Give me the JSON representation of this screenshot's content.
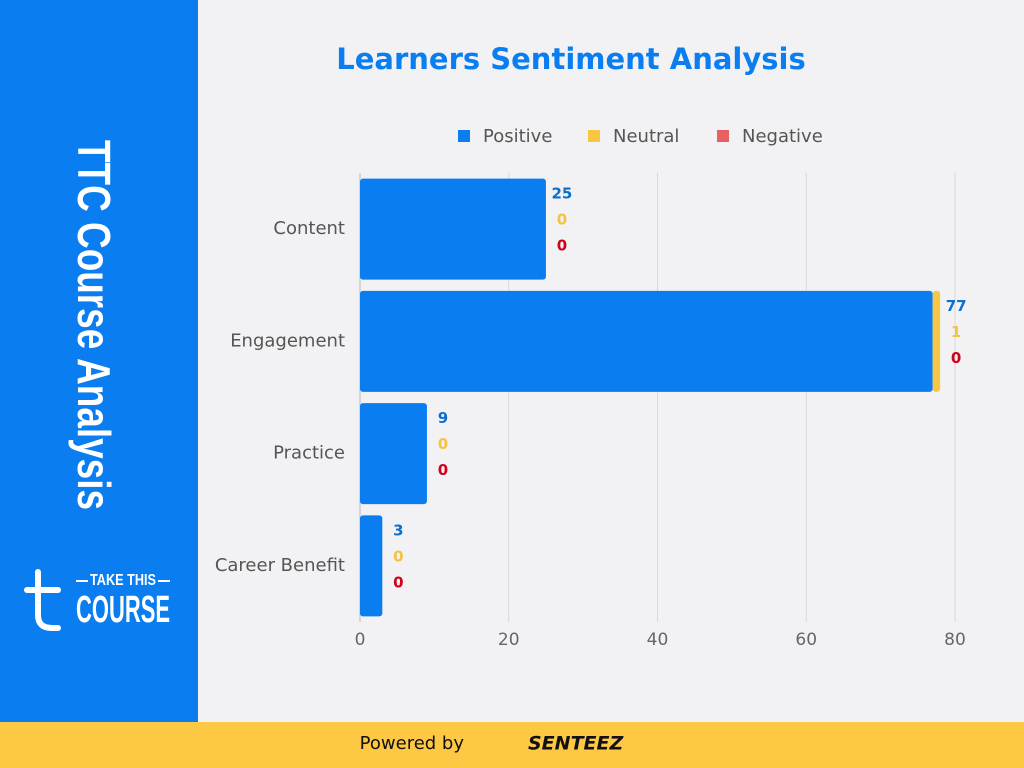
{
  "sidebar": {
    "title": "TTC Course Analysis",
    "logo_top": "TAKE THIS",
    "logo_bottom": "COURSE"
  },
  "footer": {
    "prefix": "Powered by",
    "brand": "SENTEEZ"
  },
  "chart_data": {
    "type": "bar",
    "orientation": "horizontal",
    "stacked": true,
    "title": "Learners Sentiment Analysis",
    "categories": [
      "Content",
      "Engagement",
      "Practice",
      "Career Benefit"
    ],
    "series": [
      {
        "name": "Positive",
        "color": "#0a7ef0",
        "label_color": "#0a6fd0",
        "values": [
          25,
          77,
          9,
          3
        ]
      },
      {
        "name": "Neutral",
        "color": "#f7c744",
        "label_color": "#f5c242",
        "values": [
          0,
          1,
          0,
          0
        ]
      },
      {
        "name": "Negative",
        "color": "#e8605f",
        "label_color": "#d0021b",
        "values": [
          0,
          0,
          0,
          0
        ]
      }
    ],
    "xlim": [
      0,
      80
    ],
    "xticks": [
      0,
      20,
      40,
      60,
      80
    ],
    "grid": true,
    "legend": "top"
  }
}
